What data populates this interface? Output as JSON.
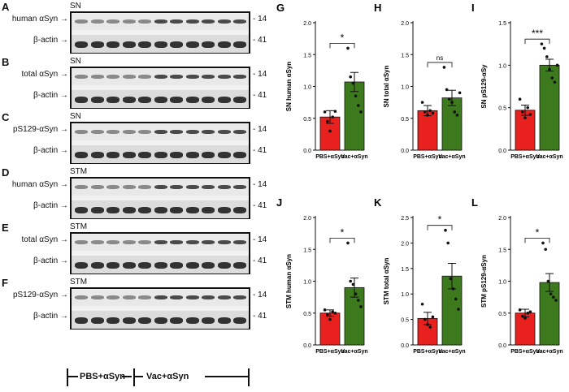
{
  "figure": {
    "western_blots": {
      "target_label": "human αSyn",
      "groups": [
        "PBS+αSyn",
        "Vac+αSyn"
      ],
      "mw_marker_14": "14",
      "mw_marker_41": "41",
      "arrow": "→",
      "panels": [
        {
          "letter": "A",
          "region": "SN",
          "target": "human αSyn",
          "loading": "β-actin"
        },
        {
          "letter": "B",
          "region": "SN",
          "target": "total αSyn",
          "loading": "β-actin"
        },
        {
          "letter": "C",
          "region": "SN",
          "target": "pS129-αSyn",
          "loading": "β-actin"
        },
        {
          "letter": "D",
          "region": "STM",
          "target": "human αSyn",
          "loading": "β-actin"
        },
        {
          "letter": "E",
          "region": "STM",
          "target": "total αSyn",
          "loading": "β-actin"
        },
        {
          "letter": "F",
          "region": "STM",
          "target": "pS129-αSyn",
          "loading": "β-actin"
        }
      ]
    },
    "colors": {
      "pbs": "#e8211e",
      "vac": "#3d7a1e"
    }
  },
  "chart_data": [
    {
      "letter": "G",
      "type": "bar",
      "ylabel": "SN human αSyn",
      "ylim": [
        0,
        2.0
      ],
      "yticks": [
        "0.0",
        "0.5",
        "1.0",
        "1.5",
        "2.0"
      ],
      "categories": [
        "PBS+αSyn",
        "Vac+αSyn"
      ],
      "values": [
        0.52,
        1.07
      ],
      "sem": [
        0.1,
        0.15
      ],
      "significance": "*",
      "points": [
        [
          0.6,
          0.45,
          0.3,
          0.52,
          0.61
        ],
        [
          1.6,
          1.15,
          1.05,
          0.85,
          0.7,
          0.6
        ]
      ]
    },
    {
      "letter": "H",
      "type": "bar",
      "ylabel": "SN total αSyn",
      "ylim": [
        0,
        2.0
      ],
      "yticks": [
        "0.0",
        "0.5",
        "1.0",
        "1.5",
        "2.0"
      ],
      "categories": [
        "PBS+αSyn",
        "Vac+αSyn"
      ],
      "values": [
        0.62,
        0.82
      ],
      "sem": [
        0.08,
        0.12
      ],
      "significance": "ns",
      "points": [
        [
          0.75,
          0.6,
          0.55,
          0.62,
          0.58
        ],
        [
          1.3,
          0.95,
          0.8,
          0.75,
          0.6,
          0.55,
          0.9
        ]
      ]
    },
    {
      "letter": "I",
      "type": "bar",
      "ylabel": "SN pS129-αSy",
      "ylim": [
        0,
        1.5
      ],
      "yticks": [
        "0.0",
        "0.5",
        "1.0",
        "1.5"
      ],
      "categories": [
        "PBS+αSyn",
        "Vac+αSyn"
      ],
      "values": [
        0.47,
        1.0
      ],
      "sem": [
        0.06,
        0.07
      ],
      "significance": "***",
      "points": [
        [
          0.6,
          0.45,
          0.38,
          0.5,
          0.42
        ],
        [
          1.25,
          1.2,
          1.1,
          0.95,
          0.85,
          0.8,
          1.0
        ]
      ]
    },
    {
      "letter": "J",
      "type": "bar",
      "ylabel": "STM human αSyn",
      "ylim": [
        0,
        2.0
      ],
      "yticks": [
        "0.0",
        "0.5",
        "1.0",
        "1.5",
        "2.0"
      ],
      "categories": [
        "PBS+αSyn",
        "Vac+αSyn"
      ],
      "values": [
        0.5,
        0.9
      ],
      "sem": [
        0.05,
        0.15
      ],
      "significance": "*",
      "points": [
        [
          0.55,
          0.48,
          0.4,
          0.52,
          0.5
        ],
        [
          1.6,
          1.0,
          0.95,
          0.8,
          0.7,
          0.6
        ]
      ]
    },
    {
      "letter": "K",
      "type": "bar",
      "ylabel": "STM total αSyn",
      "ylim": [
        0,
        2.5
      ],
      "yticks": [
        "0.0",
        "0.5",
        "1.0",
        "1.5",
        "2.0",
        "2.5"
      ],
      "categories": [
        "PBS+αSyn",
        "Vac+αSyn"
      ],
      "values": [
        0.52,
        1.35
      ],
      "sem": [
        0.12,
        0.25
      ],
      "significance": "*",
      "points": [
        [
          0.8,
          0.5,
          0.4,
          0.35,
          0.55
        ],
        [
          2.25,
          2.0,
          1.3,
          1.1,
          0.9,
          0.7
        ]
      ]
    },
    {
      "letter": "L",
      "type": "bar",
      "ylabel": "STM pS129-αSyn",
      "ylim": [
        0,
        2.0
      ],
      "yticks": [
        "0.0",
        "0.5",
        "1.0",
        "1.5",
        "2.0"
      ],
      "categories": [
        "PBS+αSyn",
        "Vac+αSyn"
      ],
      "values": [
        0.5,
        0.98
      ],
      "sem": [
        0.06,
        0.14
      ],
      "significance": "*",
      "points": [
        [
          0.55,
          0.45,
          0.42,
          0.5,
          0.52
        ],
        [
          1.6,
          1.5,
          1.0,
          0.8,
          0.75,
          0.7
        ]
      ]
    }
  ]
}
